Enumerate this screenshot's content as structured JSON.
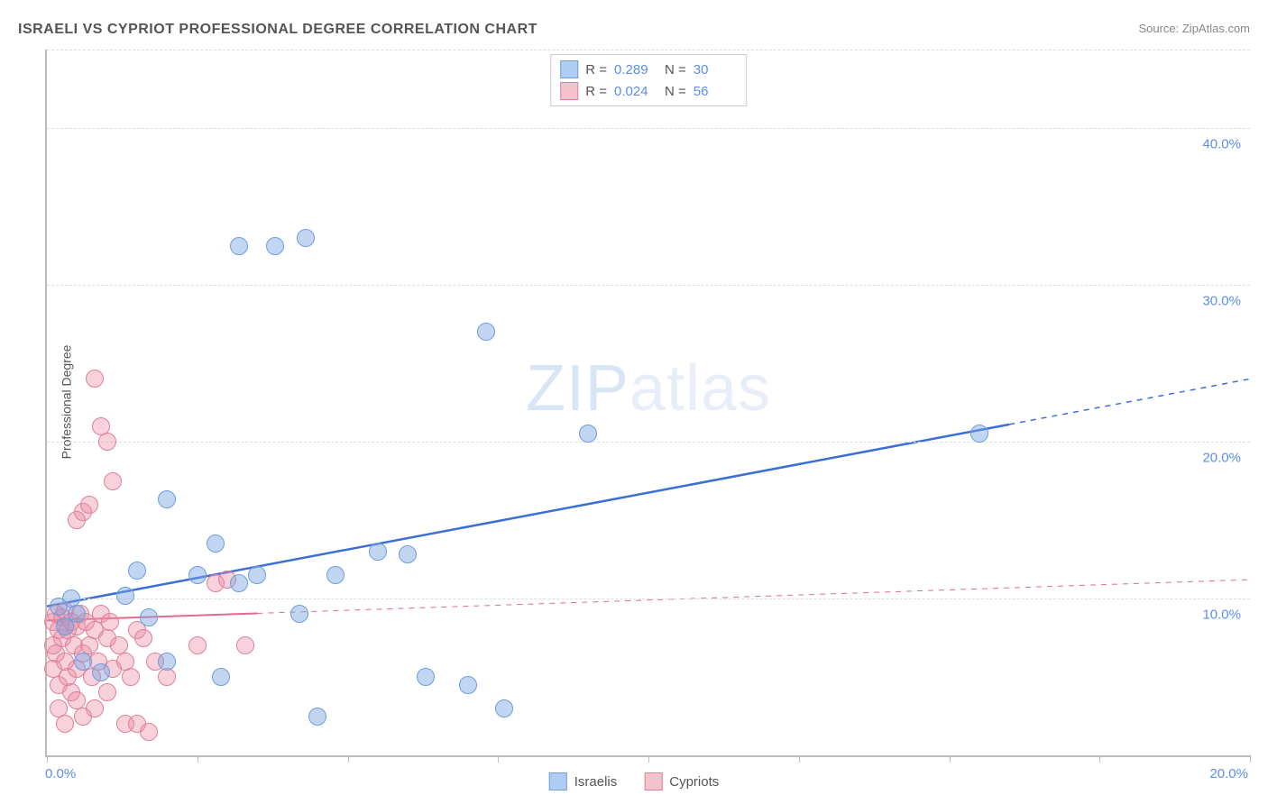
{
  "title": "ISRAELI VS CYPRIOT PROFESSIONAL DEGREE CORRELATION CHART",
  "source_label": "Source: ZipAtlas.com",
  "y_axis_label": "Professional Degree",
  "watermark": {
    "zip": "ZIP",
    "atlas": "atlas"
  },
  "chart": {
    "type": "scatter",
    "background_color": "#ffffff",
    "grid_color": "#dddddd",
    "axis_color": "#bbbbbb",
    "tick_label_color": "#5b8def",
    "xlim": [
      0,
      20
    ],
    "ylim": [
      0,
      45
    ],
    "x_ticks": [
      0,
      2.5,
      5,
      7.5,
      10,
      12.5,
      15,
      17.5,
      20
    ],
    "x_tick_labels": {
      "0": "0.0%",
      "20": "20.0%"
    },
    "y_gridlines": [
      10,
      20,
      30,
      40,
      45
    ],
    "y_tick_labels": {
      "10": "10.0%",
      "20": "20.0%",
      "30": "30.0%",
      "40": "40.0%"
    },
    "series": [
      {
        "name": "Israelis",
        "swatch_fill": "#aeccf4",
        "swatch_border": "#6d9ee0",
        "marker_fill": "rgba(120,165,225,0.45)",
        "marker_border": "#6d9ee0",
        "marker_radius": 10,
        "trend_color": "#3b6fd4",
        "trend_width": 2.5,
        "trend_solid_x_extent": 16.0,
        "trend": {
          "y_at_x0": 9.5,
          "y_at_xmax": 24.0
        },
        "stats": {
          "R": "0.289",
          "N": "30"
        },
        "points": [
          [
            0.2,
            9.5
          ],
          [
            0.3,
            8.2
          ],
          [
            0.4,
            10.0
          ],
          [
            0.5,
            9.0
          ],
          [
            0.6,
            6.0
          ],
          [
            0.9,
            5.3
          ],
          [
            1.3,
            10.2
          ],
          [
            1.5,
            11.8
          ],
          [
            1.7,
            8.8
          ],
          [
            2.0,
            16.3
          ],
          [
            2.0,
            6.0
          ],
          [
            2.5,
            11.5
          ],
          [
            2.8,
            13.5
          ],
          [
            2.9,
            5.0
          ],
          [
            3.2,
            11.0
          ],
          [
            3.2,
            32.5
          ],
          [
            3.5,
            11.5
          ],
          [
            3.8,
            32.5
          ],
          [
            4.2,
            9.0
          ],
          [
            4.3,
            33.0
          ],
          [
            4.5,
            2.5
          ],
          [
            4.8,
            11.5
          ],
          [
            5.5,
            13.0
          ],
          [
            6.0,
            12.8
          ],
          [
            6.3,
            5.0
          ],
          [
            7.0,
            4.5
          ],
          [
            7.3,
            27.0
          ],
          [
            7.6,
            3.0
          ],
          [
            9.0,
            20.5
          ],
          [
            15.5,
            20.5
          ]
        ]
      },
      {
        "name": "Cypriots",
        "swatch_fill": "#f6c2cd",
        "swatch_border": "#e08099",
        "marker_fill": "rgba(235,140,165,0.40)",
        "marker_border": "#e08099",
        "marker_radius": 10,
        "trend_color": "#e36a8c",
        "trend_width": 2,
        "trend_solid_x_extent": 3.5,
        "trend": {
          "y_at_x0": 8.6,
          "y_at_xmax": 11.2
        },
        "stats": {
          "R": "0.024",
          "N": "56"
        },
        "points": [
          [
            0.1,
            8.5
          ],
          [
            0.1,
            7.0
          ],
          [
            0.1,
            5.5
          ],
          [
            0.15,
            9.0
          ],
          [
            0.15,
            6.5
          ],
          [
            0.2,
            8.0
          ],
          [
            0.2,
            4.5
          ],
          [
            0.2,
            3.0
          ],
          [
            0.25,
            8.8
          ],
          [
            0.25,
            7.5
          ],
          [
            0.3,
            6.0
          ],
          [
            0.3,
            9.2
          ],
          [
            0.3,
            2.0
          ],
          [
            0.35,
            5.0
          ],
          [
            0.35,
            8.0
          ],
          [
            0.4,
            8.5
          ],
          [
            0.4,
            4.0
          ],
          [
            0.45,
            7.0
          ],
          [
            0.5,
            15.0
          ],
          [
            0.5,
            8.2
          ],
          [
            0.5,
            5.5
          ],
          [
            0.5,
            3.5
          ],
          [
            0.55,
            9.0
          ],
          [
            0.6,
            15.5
          ],
          [
            0.6,
            6.5
          ],
          [
            0.6,
            2.5
          ],
          [
            0.65,
            8.5
          ],
          [
            0.7,
            16.0
          ],
          [
            0.7,
            7.0
          ],
          [
            0.75,
            5.0
          ],
          [
            0.8,
            24.0
          ],
          [
            0.8,
            8.0
          ],
          [
            0.8,
            3.0
          ],
          [
            0.85,
            6.0
          ],
          [
            0.9,
            21.0
          ],
          [
            0.9,
            9.0
          ],
          [
            1.0,
            20.0
          ],
          [
            1.0,
            7.5
          ],
          [
            1.0,
            4.0
          ],
          [
            1.05,
            8.5
          ],
          [
            1.1,
            17.5
          ],
          [
            1.1,
            5.5
          ],
          [
            1.2,
            7.0
          ],
          [
            1.3,
            6.0
          ],
          [
            1.3,
            2.0
          ],
          [
            1.4,
            5.0
          ],
          [
            1.5,
            8.0
          ],
          [
            1.5,
            2.0
          ],
          [
            1.6,
            7.5
          ],
          [
            1.7,
            1.5
          ],
          [
            1.8,
            6.0
          ],
          [
            2.0,
            5.0
          ],
          [
            2.5,
            7.0
          ],
          [
            2.8,
            11.0
          ],
          [
            3.0,
            11.2
          ],
          [
            3.3,
            7.0
          ]
        ]
      }
    ]
  },
  "legend_series_labels": [
    "Israelis",
    "Cypriots"
  ]
}
